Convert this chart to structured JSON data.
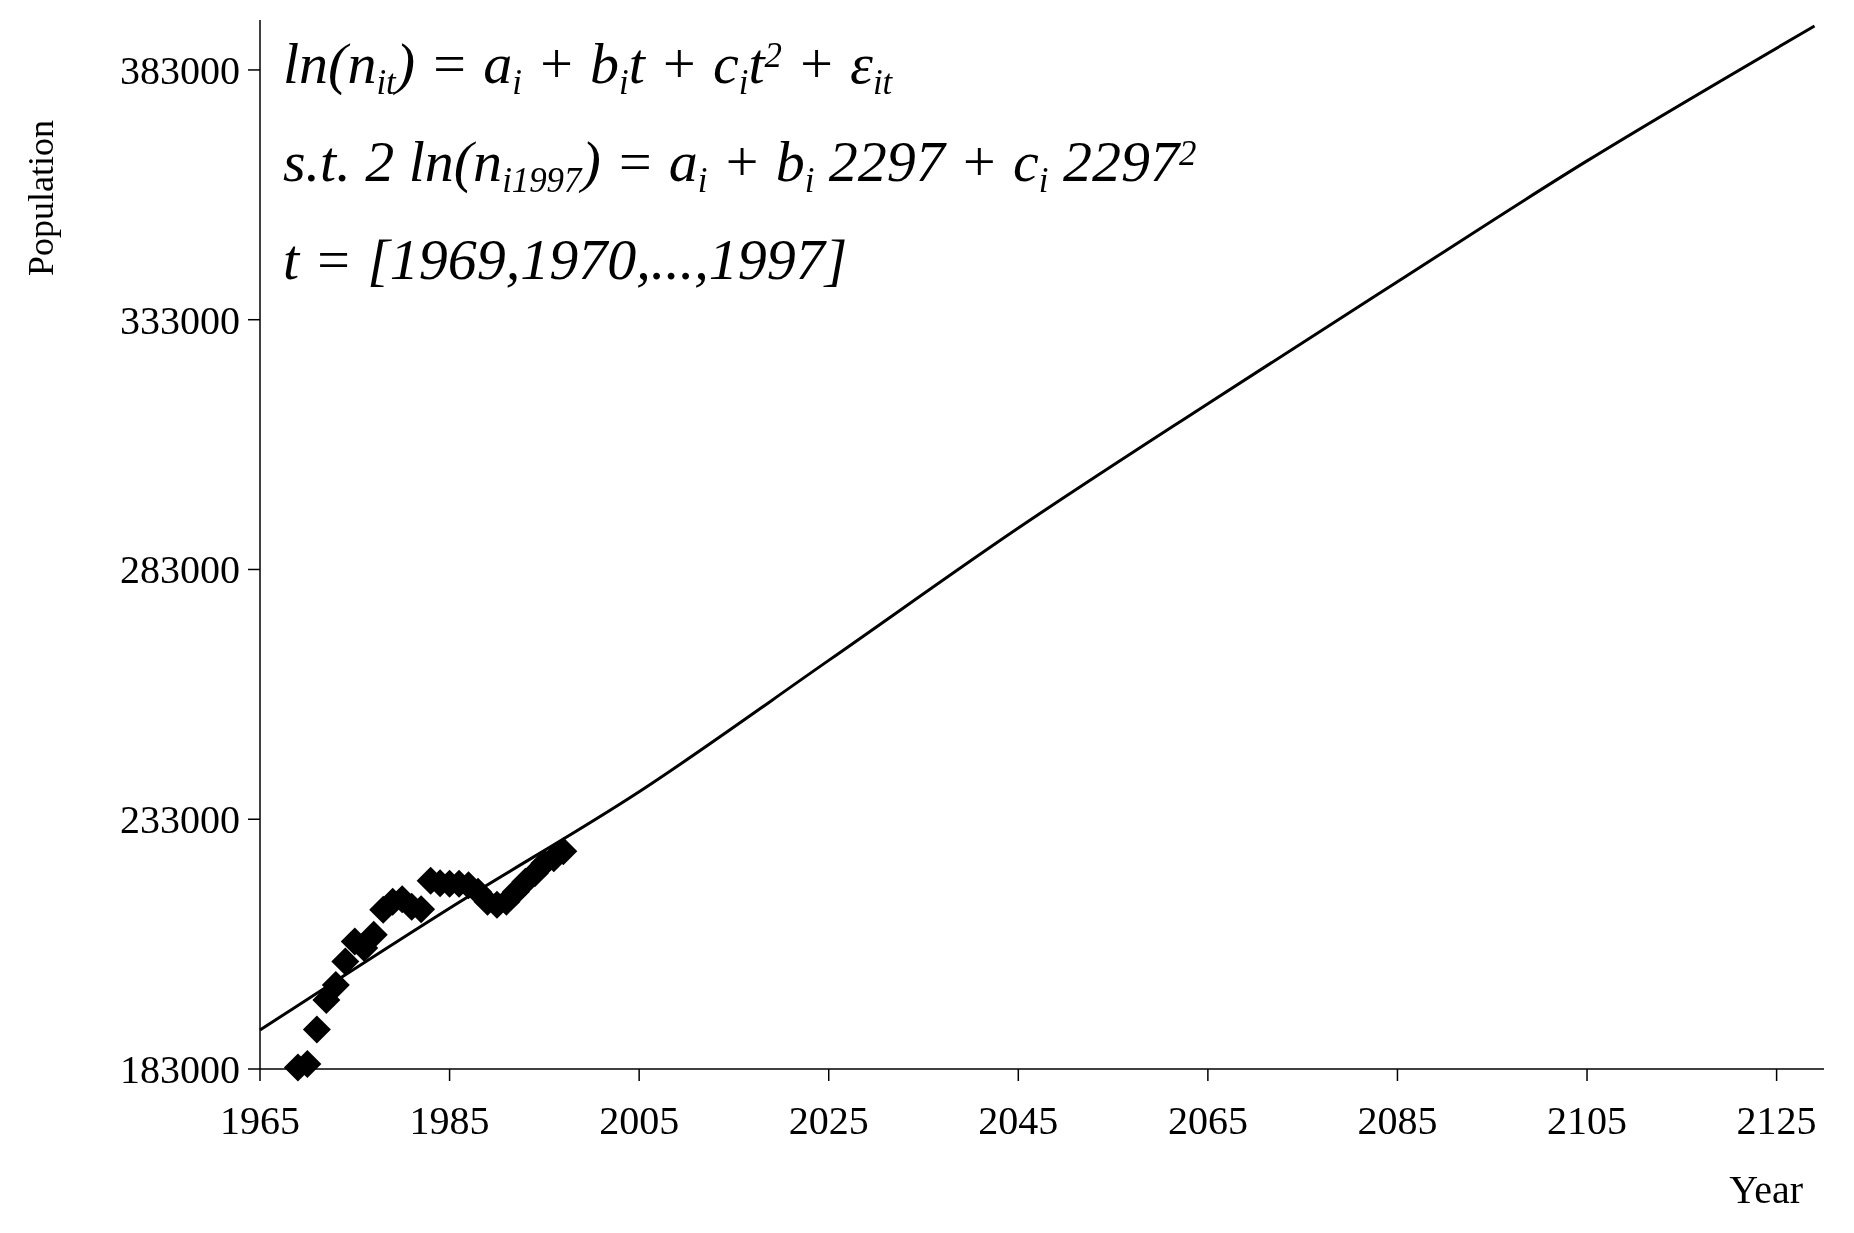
{
  "chart_data": {
    "type": "scatter",
    "xlabel": "Year",
    "ylabel": "Population",
    "xlim": [
      1965,
      2130
    ],
    "xticks": [
      1965,
      1985,
      2005,
      2025,
      2045,
      2065,
      2085,
      2105,
      2125
    ],
    "ylim": [
      183000,
      393000
    ],
    "yticks": [
      183000,
      233000,
      283000,
      333000,
      383000
    ],
    "grid": false,
    "annotations": [
      "ln(n$_{it}$) = a$_{i}$ + b$_{i}$t + c$_{i}$t$^{2}$ + ε$_{it}$",
      "s.t.    2 ln(n$_{i1997}$) = a$_{i}$ + b$_{i}$ 2297 + c$_{i}$ 2297$^{2}$",
      "t = [1969,1970,...,1997]"
    ],
    "series": [
      {
        "color": "#000000",
        "marker": "diamond",
        "x": [
          1969,
          1970,
          1971,
          1972,
          1973,
          1974,
          1975,
          1976,
          1977,
          1978,
          1979,
          1980,
          1981,
          1982,
          1983,
          1984,
          1985,
          1986,
          1987,
          1988,
          1989,
          1990,
          1991,
          1992,
          1993,
          1994,
          1995,
          1996,
          1997
        ],
        "values": [
          183300,
          184000,
          190900,
          196800,
          199800,
          204500,
          208500,
          207200,
          209900,
          214900,
          216500,
          217000,
          215500,
          215000,
          220700,
          220200,
          220100,
          220100,
          219800,
          218500,
          216500,
          215900,
          216500,
          218500,
          220500,
          222200,
          224200,
          225200,
          226600
        ]
      },
      {
        "type": "line",
        "color": "#000000",
        "marker": "none",
        "line_style": "solid",
        "x": [
          1965,
          1985,
          2005,
          2025,
          2045,
          2065,
          2085,
          2105,
          2129
        ],
        "values": [
          190800,
          215200,
          238500,
          264800,
          291300,
          316200,
          340600,
          364800,
          391800
        ]
      }
    ]
  }
}
